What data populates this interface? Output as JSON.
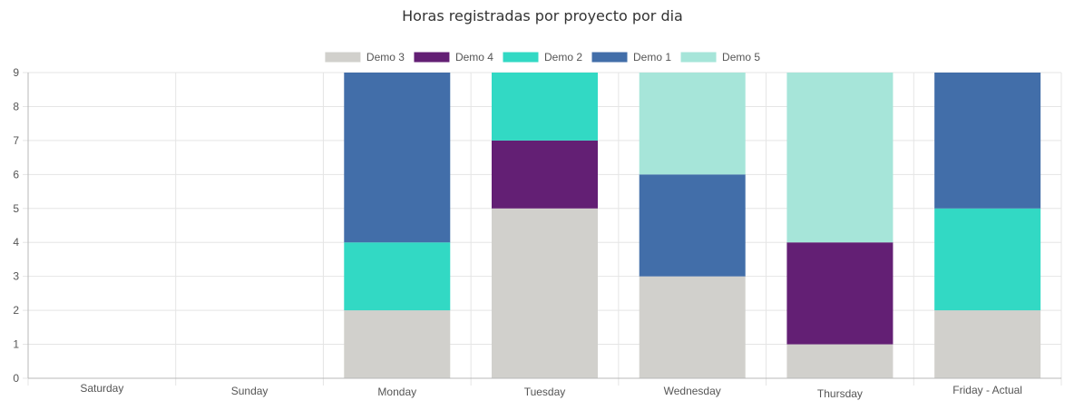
{
  "chart_data": {
    "type": "bar",
    "stacked": true,
    "title": "Horas registradas por proyecto por dia",
    "categories": [
      "Saturday",
      "Sunday",
      "Monday",
      "Tuesday",
      "Wednesday",
      "Thursday",
      "Friday  - Actual"
    ],
    "ylim": [
      0,
      9
    ],
    "yticks": [
      0,
      1,
      2,
      3,
      4,
      5,
      6,
      7,
      8,
      9
    ],
    "grid": true,
    "legend_position": "top-center",
    "series": [
      {
        "name": "Demo 3",
        "color": "#d1d0cc",
        "values": [
          0,
          0,
          2,
          5,
          3,
          1,
          2
        ]
      },
      {
        "name": "Demo 4",
        "color": "#631f74",
        "values": [
          0,
          0,
          0,
          2,
          0,
          3,
          0
        ]
      },
      {
        "name": "Demo 2",
        "color": "#32d9c4",
        "values": [
          0,
          0,
          2,
          2,
          0,
          0,
          3
        ]
      },
      {
        "name": "Demo 1",
        "color": "#426ea9",
        "values": [
          0,
          0,
          5,
          0,
          3,
          0,
          4
        ]
      },
      {
        "name": "Demo 5",
        "color": "#a6e5d9",
        "values": [
          0,
          0,
          0,
          0,
          3,
          5,
          0
        ]
      }
    ]
  }
}
